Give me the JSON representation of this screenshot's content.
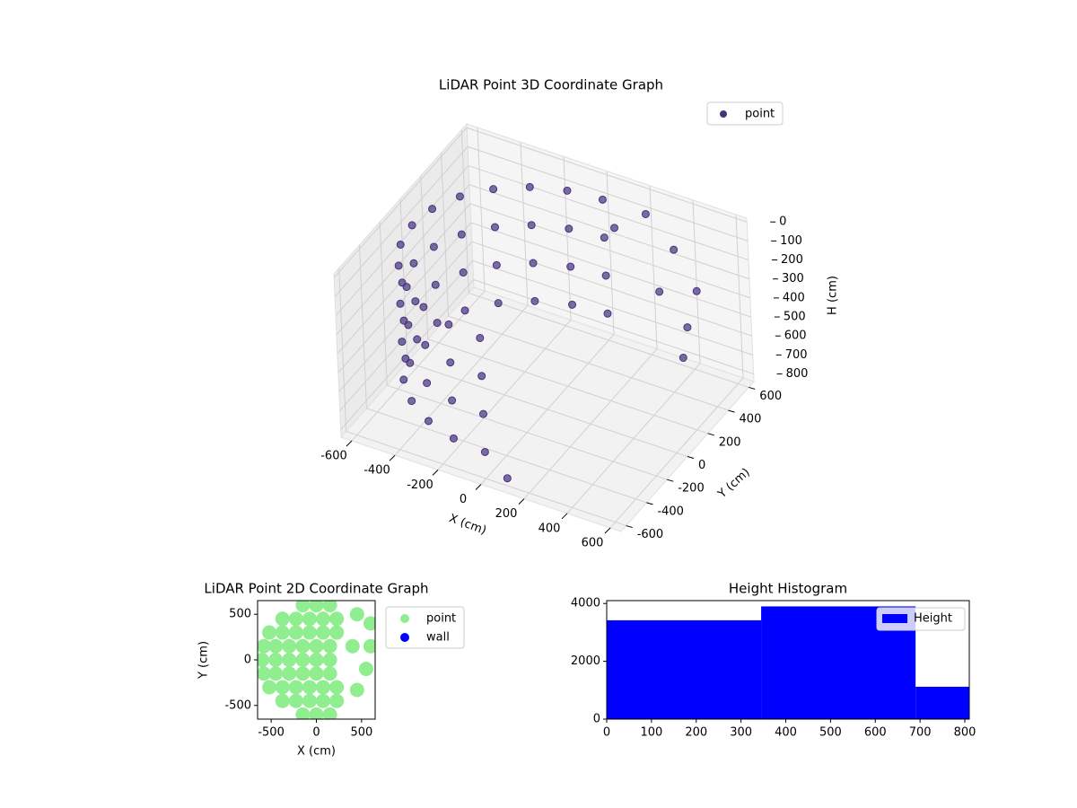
{
  "chart_data": [
    {
      "type": "scatter3d",
      "title": "LiDAR Point 3D Coordinate Graph",
      "xlabel": "X (cm)",
      "ylabel": "Y (cm)",
      "zlabel": "H (cm)",
      "xlim": [
        -650,
        650
      ],
      "ylim": [
        -650,
        650
      ],
      "zlim": [
        -20,
        840
      ],
      "zinvert": true,
      "xticks": [
        -600,
        -400,
        -200,
        0,
        200,
        400,
        600
      ],
      "yticks": [
        -600,
        -400,
        -200,
        0,
        200,
        400,
        600
      ],
      "zticks": [
        0,
        100,
        200,
        300,
        400,
        500,
        600,
        700,
        800
      ],
      "grid": true,
      "legend": "upper right",
      "series": [
        {
          "name": "point",
          "color": "#46327e",
          "x": [
            0,
            -155,
            -300,
            -424,
            -520,
            -580,
            -600,
            -580,
            -520,
            -424,
            -300,
            -155,
            0,
            0,
            -155,
            -300,
            -424,
            -520,
            -580,
            -600,
            -580,
            -520,
            -424,
            -300,
            -155,
            0,
            0,
            -155,
            -300,
            -424,
            -520,
            -580,
            -600,
            -580,
            -520,
            -424,
            -300,
            -155,
            0,
            0,
            -155,
            -300,
            -424,
            -520,
            -580,
            -600,
            -580,
            -520,
            -424,
            -300,
            -155,
            0,
            200,
            350,
            500,
            550,
            600,
            400,
            100,
            100
          ],
          "y": [
            600,
            580,
            520,
            424,
            300,
            155,
            0,
            -155,
            -300,
            -424,
            -520,
            -580,
            -600,
            600,
            580,
            520,
            424,
            300,
            155,
            0,
            -155,
            -300,
            -424,
            -520,
            -580,
            -600,
            600,
            580,
            520,
            424,
            300,
            155,
            0,
            -155,
            -300,
            -424,
            -520,
            -580,
            -600,
            600,
            580,
            520,
            424,
            300,
            155,
            0,
            -155,
            -300,
            -424,
            -520,
            -580,
            -600,
            600,
            550,
            450,
            250,
            100,
            300,
            -600,
            500
          ],
          "z": [
            100,
            100,
            100,
            100,
            100,
            100,
            100,
            100,
            100,
            100,
            100,
            100,
            100,
            300,
            300,
            300,
            300,
            300,
            300,
            300,
            300,
            300,
            300,
            300,
            300,
            300,
            500,
            500,
            500,
            500,
            500,
            500,
            500,
            500,
            500,
            500,
            500,
            500,
            500,
            700,
            700,
            700,
            700,
            700,
            700,
            700,
            700,
            700,
            700,
            700,
            700,
            700,
            100,
            200,
            300,
            350,
            400,
            250,
            800,
            150
          ]
        }
      ]
    },
    {
      "type": "scatter",
      "title": "LiDAR Point 2D Coordinate Graph",
      "xlabel": "X (cm)",
      "ylabel": "Y (cm)",
      "xlim": [
        -650,
        650
      ],
      "ylim": [
        -650,
        650
      ],
      "xticks": [
        -500,
        0,
        500
      ],
      "yticks": [
        -500,
        0,
        500
      ],
      "legend": "outside right",
      "series": [
        {
          "name": "point",
          "color": "#90ee90",
          "x": [
            -150,
            0,
            150,
            -375,
            -225,
            -75,
            75,
            225,
            -520,
            -375,
            -225,
            -75,
            75,
            225,
            -580,
            -450,
            -300,
            -150,
            0,
            150,
            -600,
            -450,
            -300,
            -150,
            0,
            150,
            -580,
            -450,
            -300,
            -150,
            0,
            150,
            -520,
            -375,
            -225,
            -75,
            75,
            225,
            -375,
            -225,
            -75,
            75,
            225,
            -150,
            0,
            150,
            450,
            600,
            400,
            600,
            550,
            450
          ],
          "y": [
            600,
            600,
            600,
            450,
            450,
            450,
            450,
            450,
            300,
            300,
            300,
            300,
            300,
            300,
            150,
            150,
            150,
            150,
            150,
            150,
            0,
            0,
            0,
            0,
            0,
            0,
            -150,
            -150,
            -150,
            -150,
            -150,
            -150,
            -300,
            -300,
            -300,
            -300,
            -300,
            -300,
            -450,
            -450,
            -450,
            -450,
            -450,
            -600,
            -600,
            -600,
            500,
            400,
            150,
            150,
            -100,
            -330
          ]
        },
        {
          "name": "wall",
          "color": "#0000ff",
          "x": [],
          "y": []
        }
      ]
    },
    {
      "type": "histogram",
      "title": "Height Histogram",
      "bins": [
        0,
        345,
        690,
        810
      ],
      "xlim": [
        0,
        810
      ],
      "ylim": [
        0,
        4100
      ],
      "xticks": [
        0,
        100,
        200,
        300,
        400,
        500,
        600,
        700,
        800
      ],
      "yticks": [
        0,
        2000,
        4000
      ],
      "legend": "upper right",
      "series": [
        {
          "name": "Height",
          "color": "#0000ff",
          "values": [
            3420,
            3900,
            1120
          ]
        }
      ]
    }
  ]
}
